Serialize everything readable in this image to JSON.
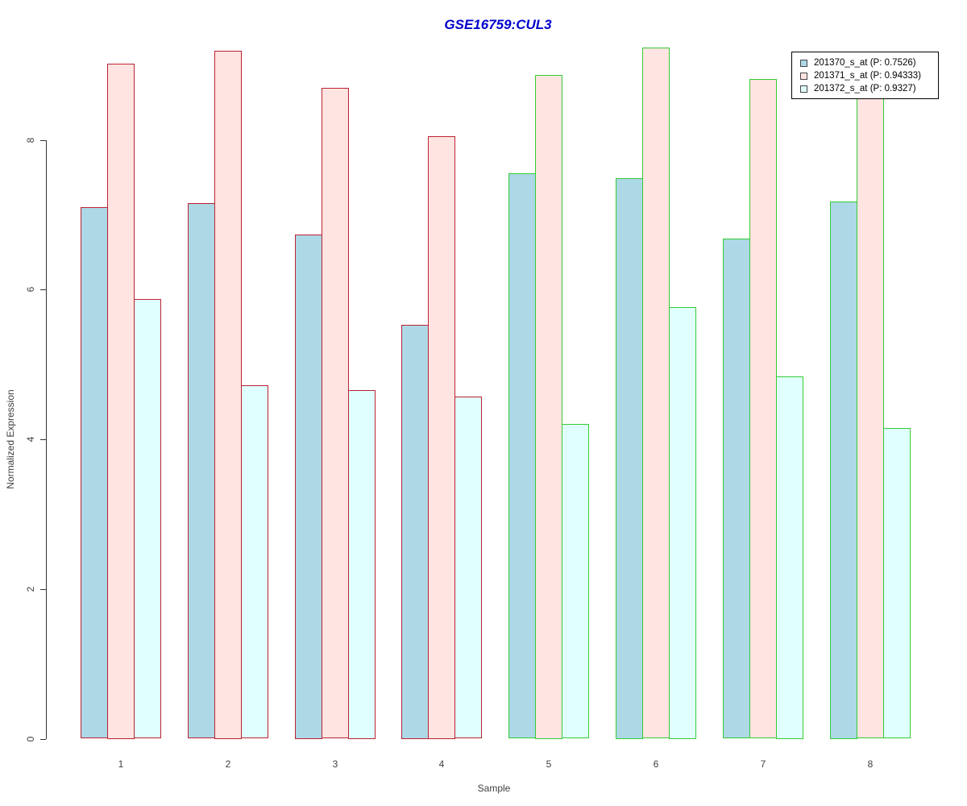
{
  "title": {
    "text": "GSE16759:CUL3",
    "color": "#0000CC"
  },
  "chart_data": {
    "type": "bar",
    "title": "GSE16759:CUL3",
    "xlabel": "Sample",
    "ylabel": "Normalized Expression",
    "ylim": [
      0,
      9.4
    ],
    "yticks": [
      0,
      2,
      4,
      6,
      8
    ],
    "grid": false,
    "legend_position": "top-right",
    "categories": [
      "1",
      "2",
      "3",
      "4",
      "5",
      "6",
      "7",
      "8"
    ],
    "series": [
      {
        "name": "201370_s_at (P: 0.7526)",
        "fill": "#ADD8E6",
        "values": [
          7.1,
          7.15,
          6.74,
          5.53,
          7.55,
          7.49,
          6.68,
          7.18
        ]
      },
      {
        "name": "201371_s_at (P: 0.94333)",
        "fill": "#FFE4E1",
        "values": [
          9.02,
          9.19,
          8.69,
          8.05,
          8.87,
          9.23,
          8.81,
          8.95
        ]
      },
      {
        "name": "201372_s_at (P: 0.9327)",
        "fill": "#E0FFFF",
        "values": [
          5.87,
          4.72,
          4.66,
          4.57,
          4.2,
          5.77,
          4.84,
          4.15
        ]
      }
    ],
    "group_border_colors": [
      "#BB2233",
      "#BB2233",
      "#BB2233",
      "#BB2233",
      "#33CC33",
      "#33CC33",
      "#33CC33",
      "#33CC33"
    ]
  }
}
